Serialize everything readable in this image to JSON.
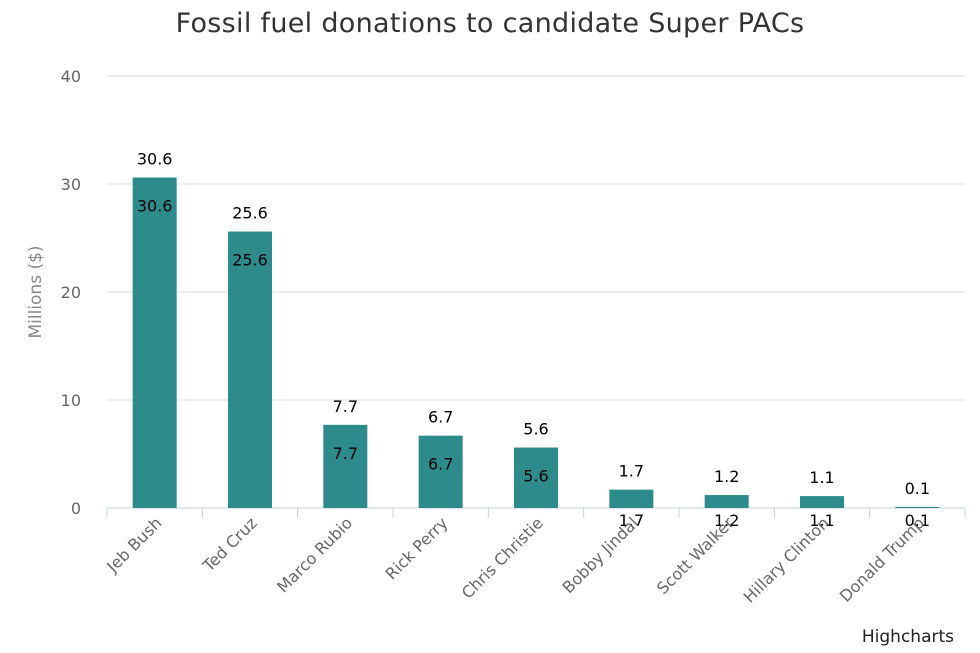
{
  "credits": "Highcharts",
  "chart_data": {
    "type": "bar",
    "title": "Fossil fuel donations to candidate Super PACs",
    "xlabel": "",
    "ylabel": "Millions ($)",
    "ylim": [
      0,
      40
    ],
    "yticks": [
      0,
      10,
      20,
      30,
      40
    ],
    "grid": true,
    "legend": "none",
    "categories": [
      "Jeb Bush",
      "Ted Cruz",
      "Marco Rubio",
      "Rick Perry",
      "Chris Christie",
      "Bobby Jindal",
      "Scott Walker",
      "Hillary Clinton",
      "Donald Trump"
    ],
    "values": [
      30.6,
      25.6,
      7.7,
      6.7,
      5.6,
      1.7,
      1.2,
      1.1,
      0.1
    ],
    "data_labels": [
      "30.6",
      "25.6",
      "7.7",
      "6.7",
      "5.6",
      "1.7",
      "1.2",
      "1.1",
      "0.1"
    ],
    "colors": {
      "bar": "#2e8b8b",
      "grid": "#d8dde6",
      "axis": "#c0d0e0",
      "tick_label": "#666666",
      "axis_title": "#888888",
      "data_label": "#000000"
    }
  }
}
